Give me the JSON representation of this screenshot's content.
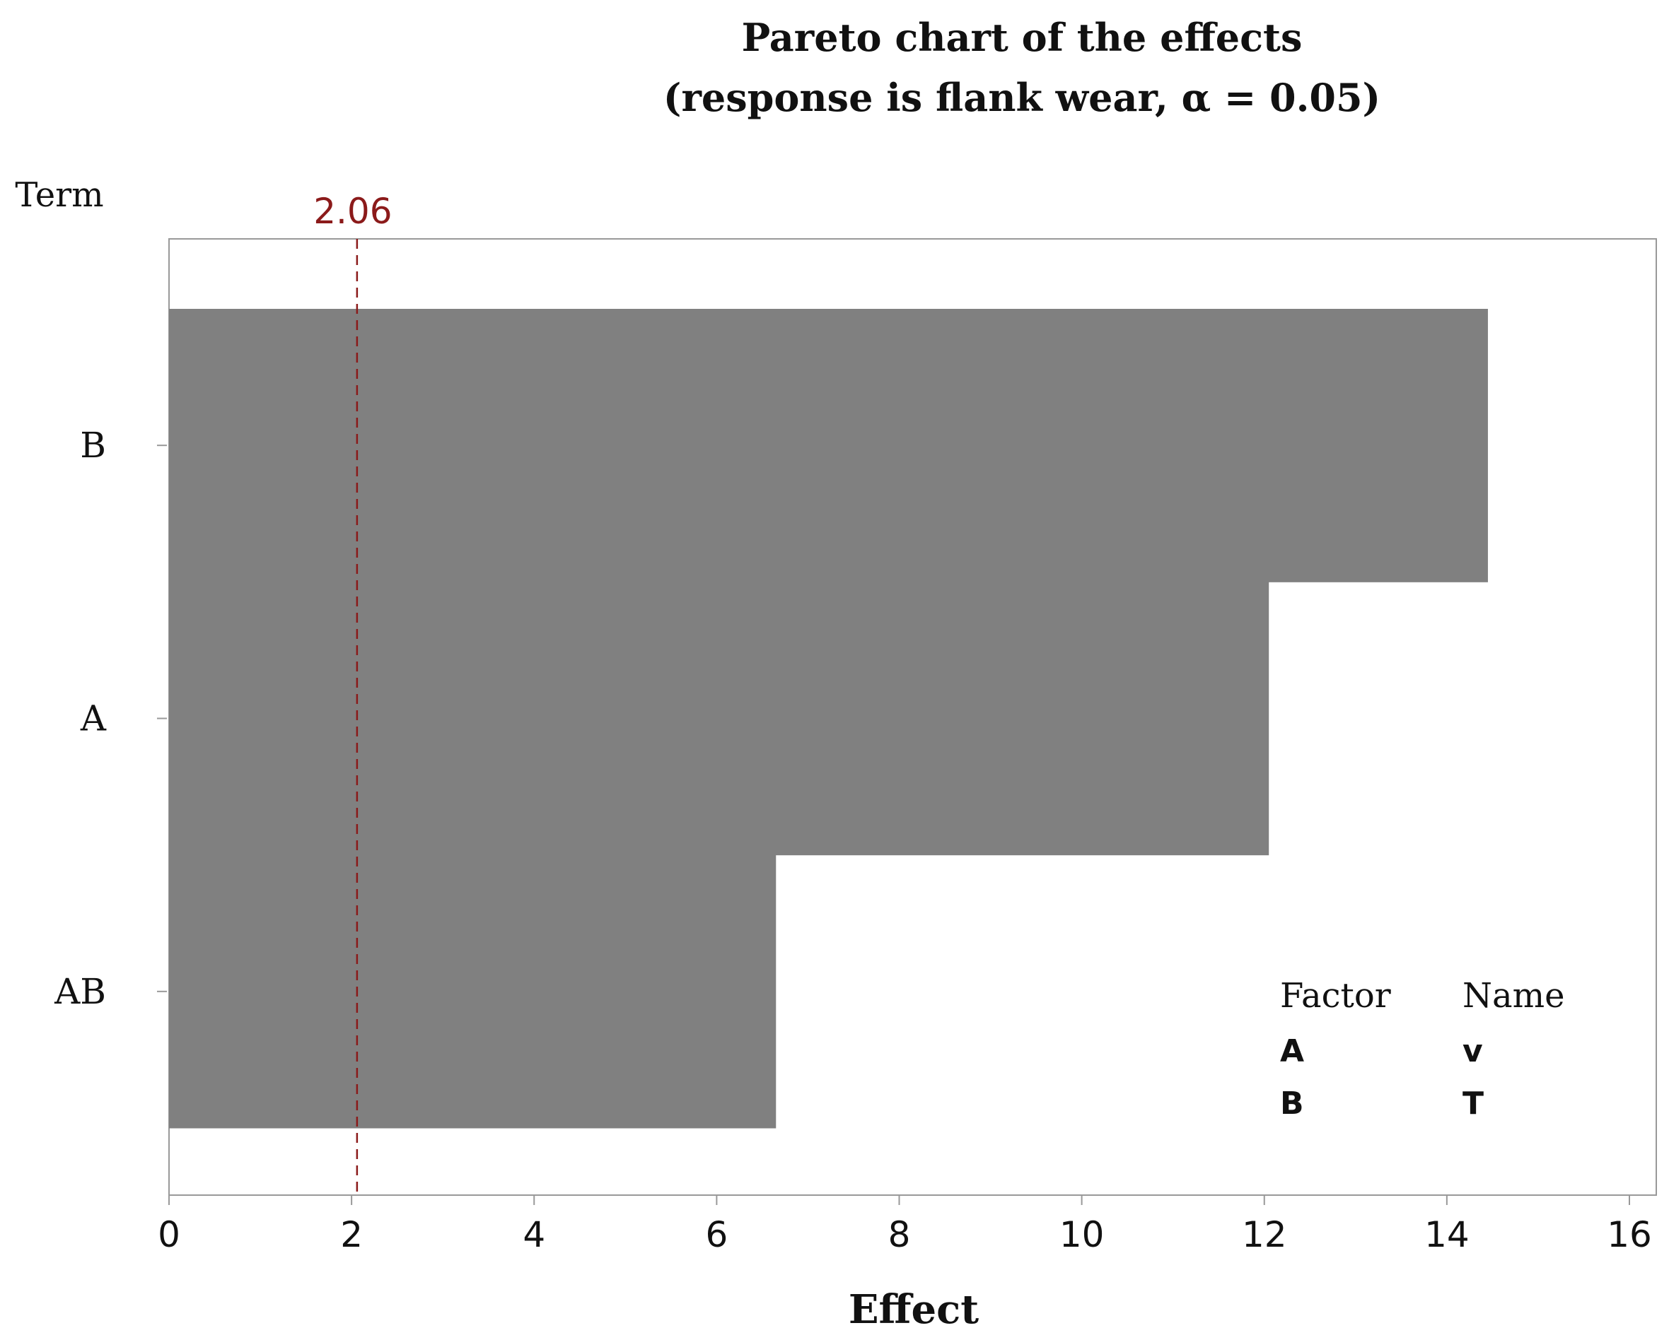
{
  "chart_data": {
    "type": "bar",
    "orientation": "horizontal",
    "title": "Pareto chart of the effects",
    "subtitle": "(response is flank wear, α = 0.05)",
    "xlabel": "Effect",
    "ylabel": "Term",
    "categories": [
      "B",
      "A",
      "AB"
    ],
    "values": [
      14.45,
      12.05,
      6.65
    ],
    "xlim": [
      0,
      16
    ],
    "xticks": [
      "0",
      "2",
      "4",
      "6",
      "8",
      "10",
      "12",
      "14",
      "16"
    ],
    "reference_line": {
      "value": 2.06,
      "label": "2.06",
      "color": "#8b1a1a",
      "style": "dashed"
    },
    "bar_color": "#808080",
    "grid": false,
    "legend": {
      "placement": "bottom-right",
      "headers": [
        "Factor",
        "Name"
      ],
      "rows": [
        [
          "A",
          "v"
        ],
        [
          "B",
          "T"
        ]
      ]
    }
  }
}
